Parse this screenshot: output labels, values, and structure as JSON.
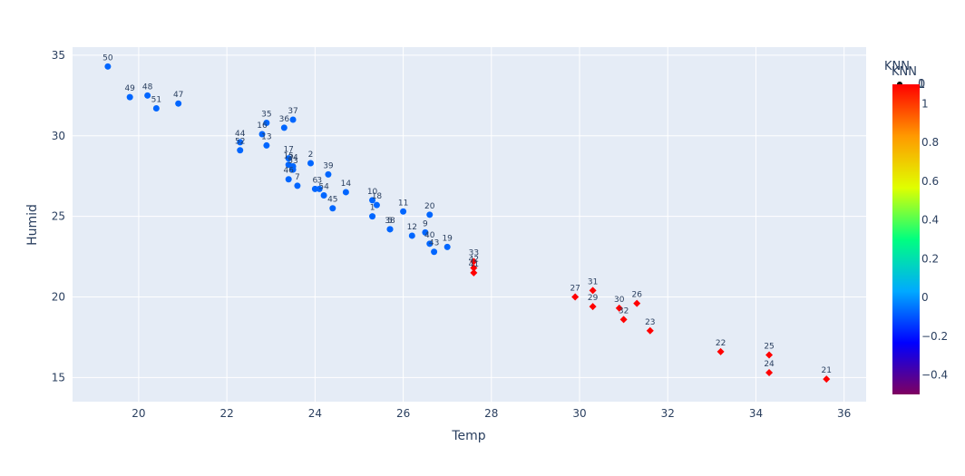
{
  "chart_data": {
    "type": "scatter",
    "xlabel": "Temp",
    "ylabel": "Humid",
    "xlim": [
      18.5,
      36.5
    ],
    "ylim": [
      13.5,
      35.5
    ],
    "x_ticks": [
      20,
      22,
      24,
      26,
      28,
      30,
      32,
      34,
      36
    ],
    "y_ticks": [
      15,
      20,
      25,
      30,
      35
    ],
    "grid": true,
    "colorbar": {
      "title": "KNN",
      "range": [
        -0.5,
        1.1
      ],
      "ticks": [
        -0.4,
        -0.2,
        0,
        0.2,
        0.4,
        0.6,
        0.8,
        1
      ],
      "colors": [
        "#7f0060",
        "#0000ff",
        "#00aaff",
        "#00ff80",
        "#e0ff00",
        "#ff9900",
        "#ff0000"
      ]
    },
    "legend": {
      "title": "KNN",
      "entries": [
        "0",
        "1"
      ],
      "position": "top-right"
    },
    "series": [
      {
        "name": "0",
        "marker": "circle",
        "color": "#0066ff",
        "points": [
          {
            "label": "50",
            "x": 19.3,
            "y": 34.3
          },
          {
            "label": "49",
            "x": 19.8,
            "y": 32.4
          },
          {
            "label": "48",
            "x": 20.2,
            "y": 32.5
          },
          {
            "label": "51",
            "x": 20.4,
            "y": 31.7
          },
          {
            "label": "47",
            "x": 20.9,
            "y": 32.0
          },
          {
            "label": "44",
            "x": 22.3,
            "y": 29.6
          },
          {
            "label": "52",
            "x": 22.3,
            "y": 29.1
          },
          {
            "label": "35",
            "x": 22.9,
            "y": 30.8
          },
          {
            "label": "16",
            "x": 22.8,
            "y": 30.1
          },
          {
            "label": "13",
            "x": 22.9,
            "y": 29.4
          },
          {
            "label": "36",
            "x": 23.3,
            "y": 30.5
          },
          {
            "label": "37",
            "x": 23.5,
            "y": 31.0
          },
          {
            "label": "17",
            "x": 23.4,
            "y": 28.6
          },
          {
            "label": "15",
            "x": 23.4,
            "y": 28.2
          },
          {
            "label": "34",
            "x": 23.5,
            "y": 28.1
          },
          {
            "label": "53",
            "x": 23.5,
            "y": 27.9
          },
          {
            "label": "46",
            "x": 23.4,
            "y": 27.3
          },
          {
            "label": "7",
            "x": 23.6,
            "y": 26.9
          },
          {
            "label": "2",
            "x": 23.9,
            "y": 28.3
          },
          {
            "label": "39",
            "x": 24.3,
            "y": 27.6
          },
          {
            "label": "6",
            "x": 24.0,
            "y": 26.7
          },
          {
            "label": "3",
            "x": 24.1,
            "y": 26.7
          },
          {
            "label": "54",
            "x": 24.2,
            "y": 26.3
          },
          {
            "label": "14",
            "x": 24.7,
            "y": 26.5
          },
          {
            "label": "45",
            "x": 24.4,
            "y": 25.5
          },
          {
            "label": "10",
            "x": 25.3,
            "y": 26.0
          },
          {
            "label": "18",
            "x": 25.4,
            "y": 25.7
          },
          {
            "label": "1",
            "x": 25.3,
            "y": 25.0
          },
          {
            "label": "11",
            "x": 26.0,
            "y": 25.3
          },
          {
            "label": "20",
            "x": 26.6,
            "y": 25.1
          },
          {
            "label": "5",
            "x": 25.7,
            "y": 24.2
          },
          {
            "label": "38",
            "x": 25.7,
            "y": 24.2
          },
          {
            "label": "12",
            "x": 26.2,
            "y": 23.8
          },
          {
            "label": "9",
            "x": 26.5,
            "y": 24.0
          },
          {
            "label": "40",
            "x": 26.6,
            "y": 23.3
          },
          {
            "label": "43",
            "x": 26.7,
            "y": 22.8
          },
          {
            "label": "19",
            "x": 27.0,
            "y": 23.1
          }
        ]
      },
      {
        "name": "1",
        "marker": "diamond",
        "color": "#ff0000",
        "points": [
          {
            "label": "33",
            "x": 27.6,
            "y": 22.2
          },
          {
            "label": "42",
            "x": 27.6,
            "y": 21.8
          },
          {
            "label": "41",
            "x": 27.6,
            "y": 21.5
          },
          {
            "label": "27",
            "x": 29.9,
            "y": 20.0
          },
          {
            "label": "31",
            "x": 30.3,
            "y": 20.4
          },
          {
            "label": "29",
            "x": 30.3,
            "y": 19.4
          },
          {
            "label": "30",
            "x": 30.9,
            "y": 19.3
          },
          {
            "label": "26",
            "x": 31.3,
            "y": 19.6
          },
          {
            "label": "32",
            "x": 31.0,
            "y": 18.6
          },
          {
            "label": "23",
            "x": 31.6,
            "y": 17.9
          },
          {
            "label": "22",
            "x": 33.2,
            "y": 16.6
          },
          {
            "label": "25",
            "x": 34.3,
            "y": 16.4
          },
          {
            "label": "24",
            "x": 34.3,
            "y": 15.3
          },
          {
            "label": "21",
            "x": 35.6,
            "y": 14.9
          }
        ]
      }
    ]
  }
}
